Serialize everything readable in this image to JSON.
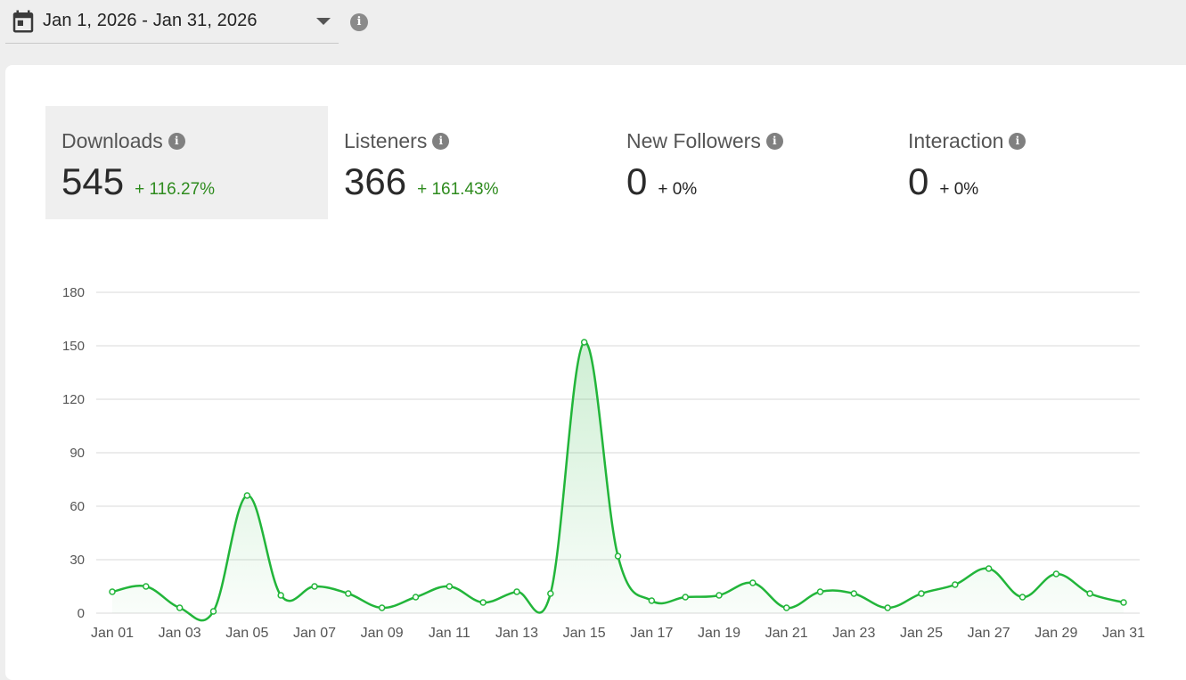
{
  "date_range": {
    "label": "Jan 1, 2026 - Jan 31, 2026",
    "icon": "calendar-icon"
  },
  "info_icon": "i",
  "metrics": [
    {
      "label": "Downloads",
      "value": "545",
      "change": "+ 116.27%",
      "change_color": "#2e8b1e",
      "active": true
    },
    {
      "label": "Listeners",
      "value": "366",
      "change": "+ 161.43%",
      "change_color": "#2e8b1e",
      "active": false
    },
    {
      "label": "New Followers",
      "value": "0",
      "change": "+ 0%",
      "change_color": "#222222",
      "active": false
    },
    {
      "label": "Interaction",
      "value": "0",
      "change": "+ 0%",
      "change_color": "#222222",
      "active": false
    }
  ],
  "colors": {
    "accent": "#22b53a",
    "grid": "#d9d9d9"
  },
  "chart_data": {
    "type": "area",
    "x": [
      "Jan 01",
      "Jan 02",
      "Jan 03",
      "Jan 04",
      "Jan 05",
      "Jan 06",
      "Jan 07",
      "Jan 08",
      "Jan 09",
      "Jan 10",
      "Jan 11",
      "Jan 12",
      "Jan 13",
      "Jan 14",
      "Jan 15",
      "Jan 16",
      "Jan 17",
      "Jan 18",
      "Jan 19",
      "Jan 20",
      "Jan 21",
      "Jan 22",
      "Jan 23",
      "Jan 24",
      "Jan 25",
      "Jan 26",
      "Jan 27",
      "Jan 28",
      "Jan 29",
      "Jan 30",
      "Jan 31"
    ],
    "x_tick_labels": [
      "Jan 01",
      "Jan 03",
      "Jan 05",
      "Jan 07",
      "Jan 09",
      "Jan 11",
      "Jan 13",
      "Jan 15",
      "Jan 17",
      "Jan 19",
      "Jan 21",
      "Jan 23",
      "Jan 25",
      "Jan 27",
      "Jan 29",
      "Jan 31"
    ],
    "series": [
      {
        "values": [
          12,
          15,
          3,
          1,
          66,
          10,
          15,
          11,
          3,
          9,
          15,
          6,
          12,
          11,
          152,
          32,
          7,
          9,
          10,
          17,
          3,
          12,
          11,
          3,
          11,
          16,
          25,
          9,
          22,
          11,
          6
        ]
      }
    ],
    "yticks": [
      0,
      30,
      60,
      90,
      120,
      150,
      180
    ],
    "ylim": [
      0,
      180
    ],
    "grid": true
  }
}
